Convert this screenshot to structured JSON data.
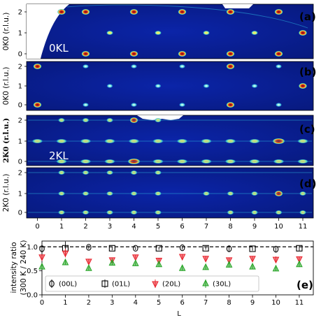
{
  "panels": [
    {
      "label": "(a)",
      "ylabel": "0K0 (r.l.u.)",
      "overlay": "0KL",
      "yticks": [
        "0",
        "1",
        "2"
      ]
    },
    {
      "label": "(b)",
      "ylabel": "0K0 (r.l.u.)",
      "overlay": "",
      "yticks": [
        "0",
        "1",
        "2"
      ]
    },
    {
      "label": "(c)",
      "ylabel": "2K0 (r.l.u.)",
      "overlay": "2KL",
      "yticks": [
        "0",
        "1",
        "2"
      ]
    },
    {
      "label": "(d)",
      "ylabel": "2K0 (r.l.u.)",
      "overlay": "",
      "yticks": [
        "0",
        "1",
        "2"
      ]
    }
  ],
  "colors": {
    "map_bg": "#0a1a8c",
    "map_hot": "#c0251b",
    "map_warm": "#f4d23a",
    "map_cool": "#3ad6c8",
    "black": "#000000",
    "red": "#e8202a",
    "green": "#23a323"
  },
  "maps": {
    "a": [
      [
        1,
        2,
        "hot"
      ],
      [
        2,
        2,
        "hot"
      ],
      [
        4,
        2,
        "hot"
      ],
      [
        6,
        2,
        "hot"
      ],
      [
        8,
        2,
        "hot"
      ],
      [
        10,
        2,
        "hot"
      ],
      [
        3,
        1,
        "warm"
      ],
      [
        5,
        1,
        "warm"
      ],
      [
        7,
        1,
        "warm"
      ],
      [
        9,
        1,
        "warm"
      ],
      [
        11,
        1,
        "hot"
      ],
      [
        2,
        0,
        "hot"
      ],
      [
        4,
        0,
        "hot"
      ],
      [
        6,
        0,
        "hot"
      ],
      [
        8,
        0,
        "hot"
      ],
      [
        10,
        0,
        "hot"
      ]
    ],
    "b": [
      [
        0,
        2,
        "hot"
      ],
      [
        2,
        2,
        "cool"
      ],
      [
        4,
        2,
        "cool"
      ],
      [
        6,
        2,
        "cool"
      ],
      [
        8,
        2,
        "hot"
      ],
      [
        10,
        2,
        "cool"
      ],
      [
        3,
        1,
        "cool"
      ],
      [
        5,
        1,
        "cool"
      ],
      [
        7,
        1,
        "cool"
      ],
      [
        9,
        1,
        "cool"
      ],
      [
        11,
        1,
        "hot"
      ],
      [
        0,
        0,
        "hot"
      ],
      [
        2,
        0,
        "cool"
      ],
      [
        4,
        0,
        "cool"
      ],
      [
        6,
        0,
        "cool"
      ],
      [
        8,
        0,
        "hot"
      ],
      [
        10,
        0,
        "cool"
      ]
    ],
    "c": [
      [
        1,
        2,
        "warm"
      ],
      [
        2,
        2,
        "warm"
      ],
      [
        3,
        2,
        "warm"
      ],
      [
        4,
        2,
        "hot"
      ],
      [
        5,
        2,
        "warm"
      ],
      [
        0,
        1,
        "warm"
      ],
      [
        1,
        1,
        "warm"
      ],
      [
        2,
        1,
        "warm"
      ],
      [
        3,
        1,
        "warm"
      ],
      [
        4,
        1,
        "warm"
      ],
      [
        5,
        1,
        "warm"
      ],
      [
        6,
        1,
        "warm"
      ],
      [
        7,
        1,
        "warm"
      ],
      [
        8,
        1,
        "warm"
      ],
      [
        9,
        1,
        "warm"
      ],
      [
        10,
        1,
        "hot"
      ],
      [
        11,
        1,
        "warm"
      ],
      [
        1,
        0,
        "warm"
      ],
      [
        2,
        0,
        "warm"
      ],
      [
        3,
        0,
        "warm"
      ],
      [
        4,
        0,
        "hot"
      ],
      [
        5,
        0,
        "warm"
      ],
      [
        6,
        0,
        "warm"
      ],
      [
        7,
        0,
        "warm"
      ],
      [
        8,
        0,
        "warm"
      ],
      [
        9,
        0,
        "warm"
      ],
      [
        10,
        0,
        "warm"
      ],
      [
        11,
        0,
        "warm"
      ]
    ],
    "d": [
      [
        1,
        2,
        "warm"
      ],
      [
        2,
        2,
        "warm"
      ],
      [
        3,
        2,
        "warm"
      ],
      [
        4,
        2,
        "warm"
      ],
      [
        5,
        2,
        "warm"
      ],
      [
        1,
        1,
        "warm"
      ],
      [
        2,
        1,
        "warm"
      ],
      [
        3,
        1,
        "warm"
      ],
      [
        4,
        1,
        "warm"
      ],
      [
        5,
        1,
        "warm"
      ],
      [
        7,
        1,
        "warm"
      ],
      [
        8,
        1,
        "warm"
      ],
      [
        9,
        1,
        "warm"
      ],
      [
        10,
        1,
        "hot"
      ],
      [
        11,
        1,
        "warm"
      ],
      [
        1,
        0,
        "warm"
      ],
      [
        2,
        0,
        "warm"
      ],
      [
        3,
        0,
        "warm"
      ],
      [
        4,
        0,
        "warm"
      ],
      [
        5,
        0,
        "warm"
      ],
      [
        8,
        0,
        "warm"
      ],
      [
        9,
        0,
        "warm"
      ],
      [
        10,
        0,
        "warm"
      ],
      [
        11,
        0,
        "warm"
      ]
    ]
  },
  "chart_data": {
    "type": "scatter",
    "label": "(e)",
    "xlabel": "L",
    "ylabel_line1": "intensity ratio",
    "ylabel_line2": "(300 K / 240 K)",
    "xlim": [
      0,
      11.6
    ],
    "ylim": [
      0.0,
      1.12
    ],
    "xticks": [
      "0",
      "1",
      "2",
      "3",
      "4",
      "5",
      "6",
      "7",
      "8",
      "9",
      "10",
      "11"
    ],
    "yticks": [
      "0.0",
      "0.5",
      "1.0"
    ],
    "reference_line": 1.0,
    "series": [
      {
        "name": "(00L)",
        "marker": "circle",
        "color": "#000000",
        "x": [
          0,
          2,
          4,
          6,
          8,
          10
        ],
        "y": [
          0.96,
          0.99,
          0.97,
          0.98,
          0.96,
          0.95
        ],
        "err": [
          0.06,
          0.04,
          0.04,
          0.04,
          0.05,
          0.07
        ]
      },
      {
        "name": "(01L)",
        "marker": "square",
        "color": "#000000",
        "x": [
          1,
          3,
          5,
          7,
          9,
          11
        ],
        "y": [
          0.97,
          0.97,
          0.97,
          0.97,
          0.96,
          0.97
        ],
        "err": [
          0.14,
          0.04,
          0.03,
          0.03,
          0.04,
          0.05
        ]
      },
      {
        "name": "(20L)",
        "marker": "tri-down",
        "color": "#e8202a",
        "x": [
          0,
          1,
          2,
          3,
          4,
          5,
          6,
          7,
          8,
          9,
          10,
          11
        ],
        "y": [
          0.79,
          0.87,
          0.7,
          0.73,
          0.79,
          0.72,
          0.8,
          0.76,
          0.73,
          0.76,
          0.74,
          0.75
        ],
        "err": [
          0.04,
          0.09,
          0.05,
          0.04,
          0.04,
          0.04,
          0.05,
          0.05,
          0.04,
          0.05,
          0.06,
          0.05
        ]
      },
      {
        "name": "(30L)",
        "marker": "tri-up",
        "color": "#23a323",
        "x": [
          0,
          1,
          2,
          3,
          4,
          5,
          6,
          7,
          8,
          9,
          10,
          11
        ],
        "y": [
          0.58,
          0.67,
          0.55,
          0.66,
          0.65,
          0.63,
          0.55,
          0.57,
          0.62,
          0.58,
          0.54,
          0.63
        ],
        "err": [
          0.04,
          0.05,
          0.04,
          0.04,
          0.04,
          0.04,
          0.05,
          0.04,
          0.05,
          0.04,
          0.04,
          0.05
        ]
      }
    ]
  }
}
